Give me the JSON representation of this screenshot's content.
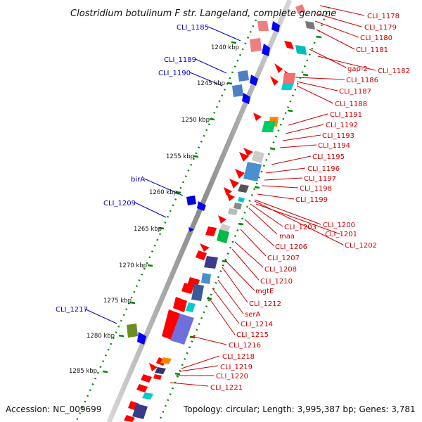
{
  "title": "Clostridium botulinum F str. Langeland, complete genome",
  "accession": "Accession: NC_009699",
  "summary": "Topology: circular; Length: 3,995,387 bp; Genes: 3,781",
  "ticks": [
    "1240 kbp",
    "1245 kbp",
    "1250 kbp",
    "1255 kbp",
    "1260 kbp",
    "1265 kbp",
    "1270 kbp",
    "1275 kbp",
    "1280 kbp",
    "1285 kbp"
  ],
  "left_genes": [
    "CLI_1185",
    "CLI_1189",
    "CLI_1190",
    "birA",
    "CLI_1209",
    "CLI_1217"
  ],
  "right_genes": [
    "CLI_1178",
    "CLI_1179",
    "CLI_1180",
    "CLI_1181",
    "gap-2",
    "CLI_1182",
    "CLI_1186",
    "CLI_1187",
    "CLI_1188",
    "CLI_1191",
    "CLI_1192",
    "CLI_1193",
    "CLI_1194",
    "CLI_1195",
    "CLI_1196",
    "CLI_1197",
    "CLI_1198",
    "CLI_1199",
    "CLI_1200",
    "CLI_1203",
    "CLI_1201",
    "CLI_1202",
    "maa",
    "CLI_1206",
    "CLI_1207",
    "CLI_1208",
    "CLI_1210",
    "mgtE",
    "CLI_1212",
    "serA",
    "CLI_1214",
    "CLI_1215",
    "CLI_1216",
    "CLI_1218",
    "CLI_1219",
    "CLI_1220",
    "CLI_1221"
  ],
  "colors": {
    "forward_strand": "#ff0000",
    "reverse_strand": "#0000ff",
    "backbone": "#999999",
    "tick": "#008800",
    "label_forward": "#cc0000",
    "label_reverse": "#0000cc"
  }
}
